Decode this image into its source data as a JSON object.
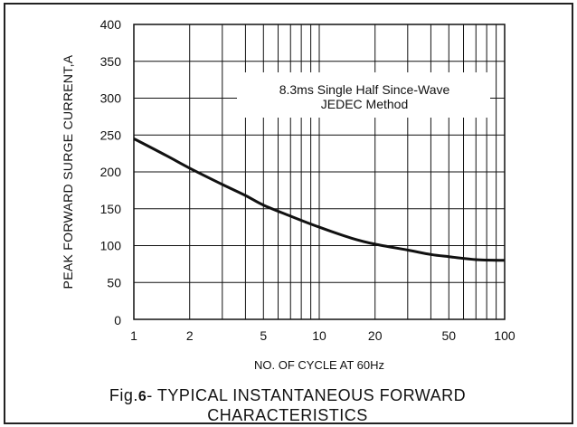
{
  "chart_data": {
    "type": "line",
    "x_scale": "log",
    "xlim": [
      1,
      100
    ],
    "ylim": [
      0,
      400
    ],
    "grid": true,
    "xlabel": "NO. OF CYCLE AT 60Hz",
    "ylabel": "PEAK FORWARD SURGE CURRENT,A",
    "x_ticks": [
      1,
      2,
      5,
      10,
      20,
      50,
      100
    ],
    "y_ticks": [
      0,
      50,
      100,
      150,
      200,
      250,
      300,
      350,
      400
    ],
    "annotation": [
      "8.3ms Single Half Since-Wave",
      "JEDEC Method"
    ],
    "series": [
      {
        "x": [
          1,
          1.5,
          2,
          3,
          4,
          5,
          7,
          10,
          15,
          20,
          30,
          40,
          50,
          70,
          100
        ],
        "y": [
          245,
          222,
          205,
          183,
          168,
          155,
          140,
          125,
          110,
          102,
          94,
          88,
          85,
          81,
          80
        ]
      }
    ]
  },
  "caption": {
    "prefix": "Fig.",
    "number": "6",
    "text_line1": "- TYPICAL INSTANTANEOUS FORWARD",
    "text_line2": "CHARACTERISTICS"
  }
}
